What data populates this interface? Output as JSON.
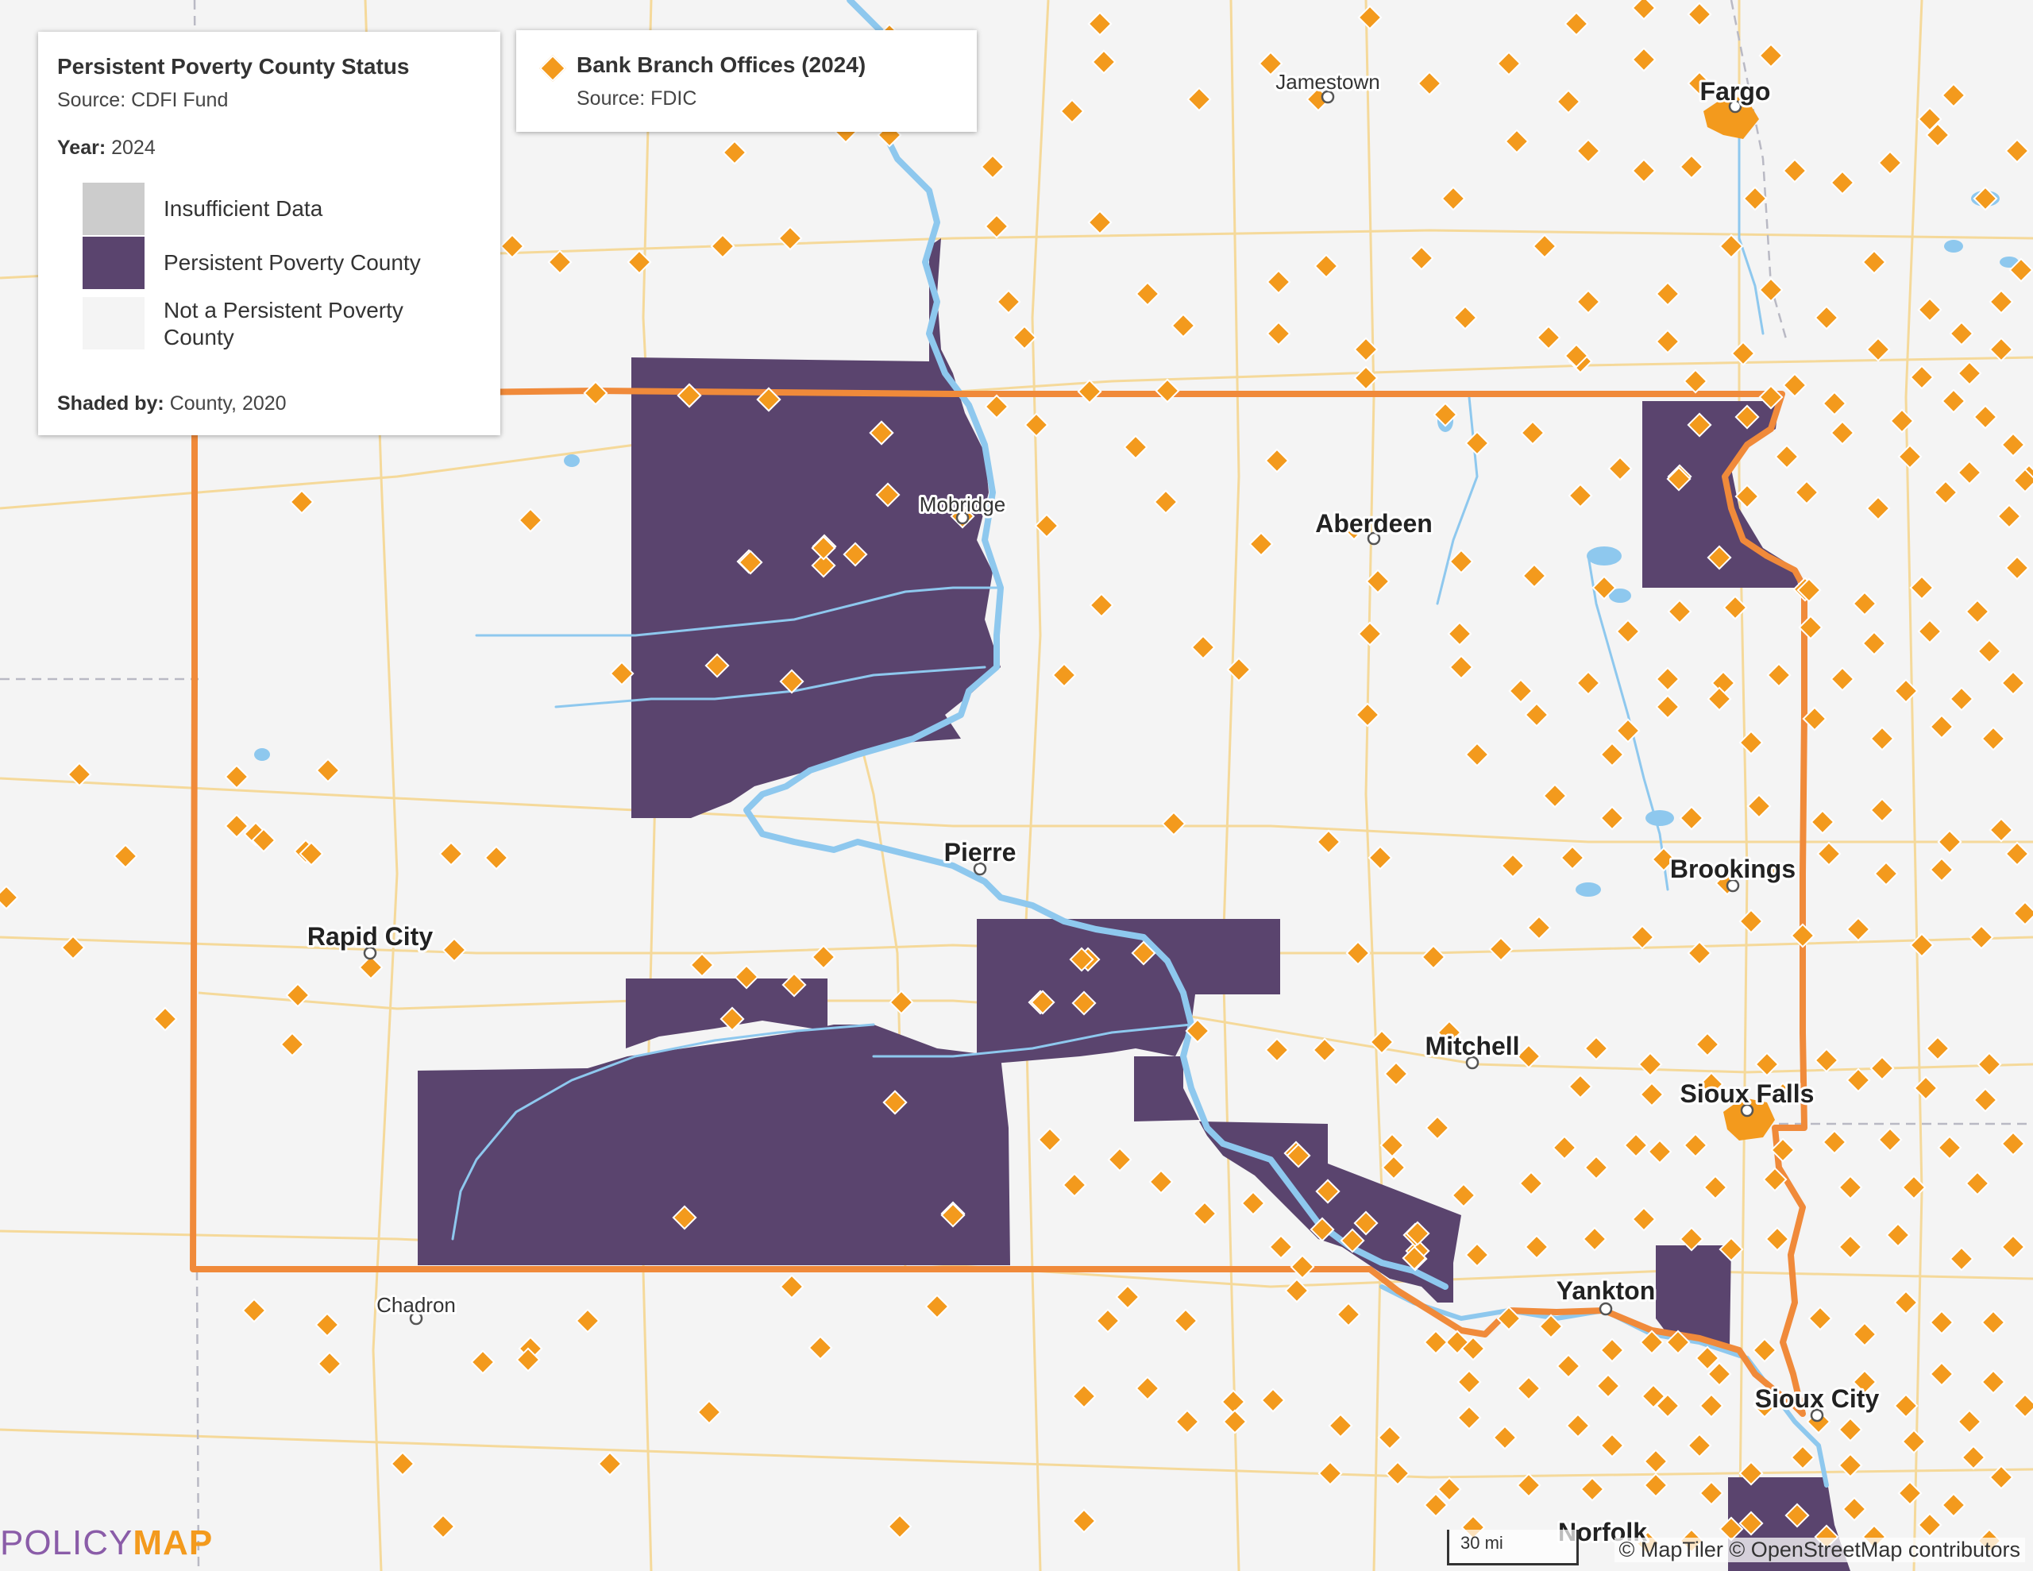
{
  "legend": {
    "title": "Persistent Poverty County Status",
    "source": "Source: CDFI Fund",
    "year_label": "Year:",
    "year_value": "2024",
    "items": [
      {
        "label": "Insufficient Data",
        "color": "#cccccc"
      },
      {
        "label": "Persistent Poverty County",
        "color": "#5a446e"
      },
      {
        "label": "Not a Persistent Poverty County",
        "color": "#f4f4f4"
      }
    ],
    "shaded_label": "Shaded by:",
    "shaded_value": "County, 2020"
  },
  "branch_legend": {
    "title": "Bank Branch Offices (2024)",
    "source": "Source: FDIC",
    "color": "#f39a1d"
  },
  "cities": {
    "jamestown": "Jamestown",
    "fargo": "Fargo",
    "mobridge": "Mobridge",
    "aberdeen": "Aberdeen",
    "pierre": "Pierre",
    "brookings": "Brookings",
    "rapid_city": "Rapid City",
    "mitchell": "Mitchell",
    "sioux_falls": "Sioux Falls",
    "chadron": "Chadron",
    "yankton": "Yankton",
    "sioux_city": "Sioux City",
    "norfolk": "Norfolk"
  },
  "logo": {
    "part1": "POLICY",
    "part2": "MAP"
  },
  "scale_label": "30 mi",
  "attribution": "© MapTiler © OpenStreetMap contributors",
  "colors": {
    "poverty": "#5a446e",
    "state_border": "#f08a3a",
    "water": "#8ec8ee",
    "road": "#f5d99a",
    "branch": "#f39a1d"
  }
}
